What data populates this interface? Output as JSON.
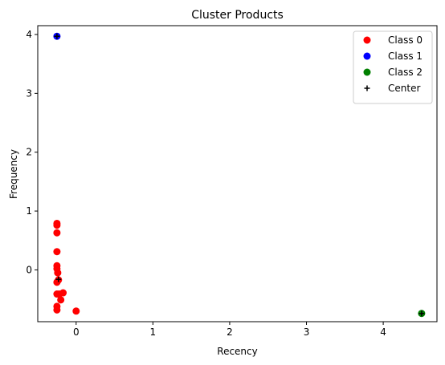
{
  "chart_data": {
    "type": "scatter",
    "title": "Cluster Products",
    "xlabel": "Recency",
    "ylabel": "Frequency",
    "xlim": [
      -0.5,
      4.7
    ],
    "ylim": [
      -0.88,
      4.15
    ],
    "xticks": [
      0,
      1,
      2,
      3,
      4
    ],
    "yticks": [
      0,
      1,
      2,
      3,
      4
    ],
    "grid": false,
    "legend_position": "top-right",
    "series": [
      {
        "name": "Class 0",
        "color": "#ff0000",
        "marker": "circle",
        "points": [
          [
            -0.25,
            0.79
          ],
          [
            -0.25,
            0.76
          ],
          [
            -0.25,
            0.63
          ],
          [
            -0.25,
            0.31
          ],
          [
            -0.25,
            0.07
          ],
          [
            -0.25,
            0.02
          ],
          [
            -0.24,
            -0.05
          ],
          [
            -0.23,
            -0.17
          ],
          [
            -0.25,
            -0.21
          ],
          [
            -0.25,
            -0.41
          ],
          [
            -0.22,
            -0.41
          ],
          [
            -0.17,
            -0.39
          ],
          [
            -0.2,
            -0.51
          ],
          [
            -0.25,
            -0.62
          ],
          [
            -0.25,
            -0.68
          ],
          [
            0.0,
            -0.7
          ]
        ]
      },
      {
        "name": "Class 1",
        "color": "#0000ff",
        "marker": "circle",
        "points": [
          [
            -0.25,
            3.97
          ]
        ]
      },
      {
        "name": "Class 2",
        "color": "#008000",
        "marker": "circle",
        "points": [
          [
            4.5,
            -0.74
          ]
        ]
      },
      {
        "name": "Center",
        "color": "#000000",
        "marker": "plus",
        "points": [
          [
            -0.25,
            3.97
          ],
          [
            -0.23,
            -0.16
          ],
          [
            4.5,
            -0.74
          ]
        ]
      }
    ]
  }
}
